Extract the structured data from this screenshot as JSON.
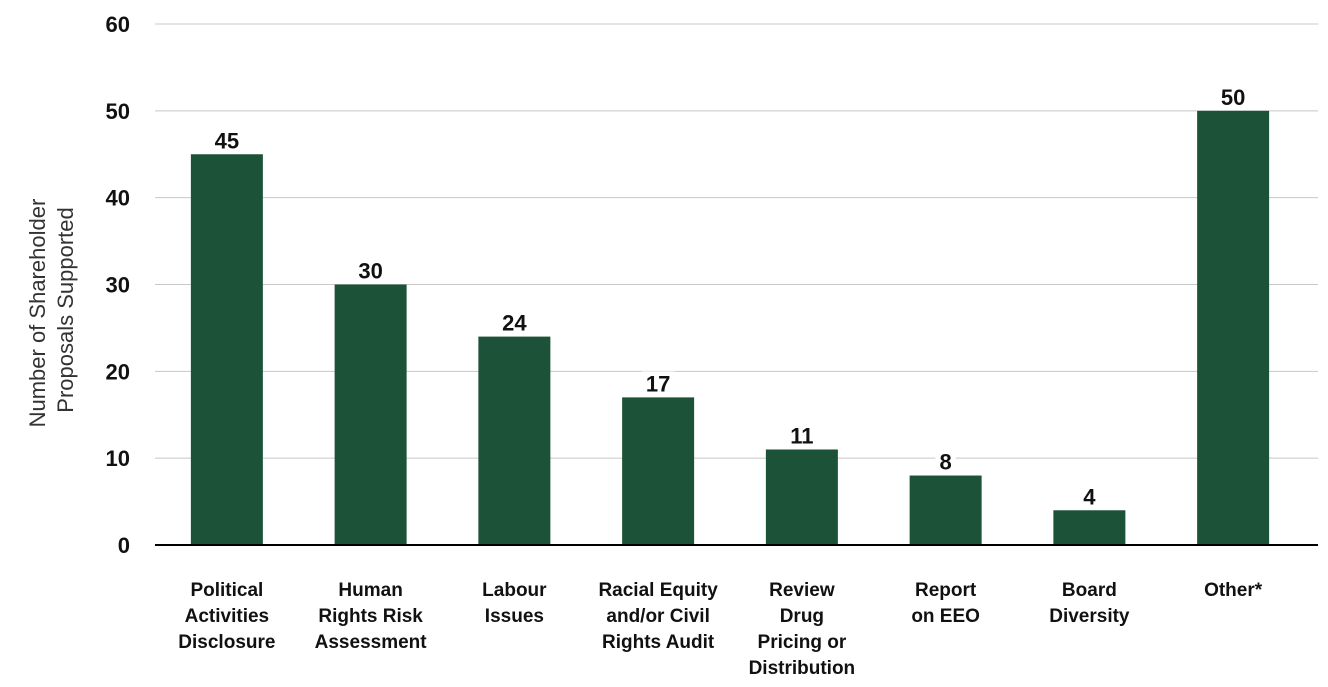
{
  "chart_data": {
    "type": "bar",
    "ylabel": [
      "Number of Shareholder",
      "Proposals Supported"
    ],
    "ylim": [
      0,
      60
    ],
    "yticks": [
      0,
      10,
      20,
      30,
      40,
      50,
      60
    ],
    "grid": true,
    "categories": [
      [
        "Political",
        "Activities",
        "Disclosure"
      ],
      [
        "Human",
        "Rights Risk",
        "Assessment"
      ],
      [
        "Labour",
        "Issues"
      ],
      [
        "Racial Equity",
        "and/or Civil",
        "Rights Audit"
      ],
      [
        "Review",
        "Drug",
        "Pricing or",
        "Distribution"
      ],
      [
        "Report",
        "on EEO"
      ],
      [
        "Board",
        "Diversity"
      ],
      [
        "Other*"
      ]
    ],
    "values": [
      45,
      30,
      24,
      17,
      11,
      8,
      4,
      50
    ],
    "bar_color": "#1c5338",
    "grid_color": "#c8c8c8",
    "axis_color": "#000000"
  }
}
